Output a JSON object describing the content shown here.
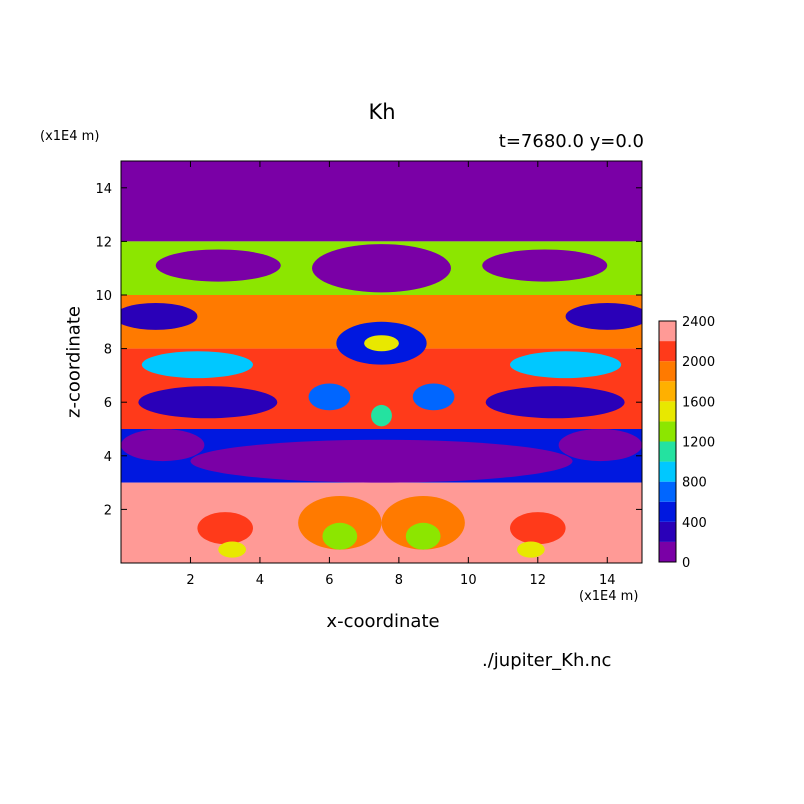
{
  "chart_data": {
    "type": "heatmap",
    "title": "Kh",
    "subtitle": "t=7680.0 y=0.0",
    "xlabel": "x-coordinate",
    "ylabel": "z-coordinate",
    "x_unit": "(x1E4 m)",
    "y_unit": "(x1E4 m)",
    "xlim": [
      0.0,
      15.0
    ],
    "ylim": [
      0.0,
      15.0
    ],
    "x_ticks": [
      "2",
      "4",
      "6",
      "8",
      "10",
      "12",
      "14"
    ],
    "y_ticks": [
      "2",
      "4",
      "6",
      "8",
      "10",
      "12",
      "14"
    ],
    "colorbar": {
      "levels": [
        0,
        200,
        400,
        600,
        800,
        1000,
        1200,
        1400,
        1600,
        1800,
        2000,
        2200,
        2400
      ],
      "labels": [
        "0",
        "400",
        "800",
        "1200",
        "1600",
        "2000",
        "2400"
      ],
      "colors": [
        "#7a00a6",
        "#2a00b8",
        "#0018e0",
        "#0066ff",
        "#00c8ff",
        "#24e2a0",
        "#8ce600",
        "#e8e800",
        "#ffb000",
        "#ff7a00",
        "#ff3a1a",
        "#ff9a96"
      ]
    },
    "bands": [
      {
        "z": [
          12.0,
          15.0
        ],
        "value": 0
      },
      {
        "z": [
          10.0,
          12.0
        ],
        "value": 1200
      },
      {
        "z": [
          8.0,
          10.0
        ],
        "value": 1800
      },
      {
        "z": [
          5.0,
          8.0
        ],
        "value": 2000
      },
      {
        "z": [
          3.0,
          5.0
        ],
        "value": 400
      },
      {
        "z": [
          0.0,
          3.0
        ],
        "value": 2400
      }
    ],
    "blobs": [
      {
        "x": 7.5,
        "z": 11.0,
        "rx": 2.0,
        "rz": 0.9,
        "value": 0
      },
      {
        "x": 2.8,
        "z": 11.1,
        "rx": 1.8,
        "rz": 0.6,
        "value": 0
      },
      {
        "x": 12.2,
        "z": 11.1,
        "rx": 1.8,
        "rz": 0.6,
        "value": 0
      },
      {
        "x": 1.0,
        "z": 9.2,
        "rx": 1.2,
        "rz": 0.5,
        "value": 200
      },
      {
        "x": 14.0,
        "z": 9.2,
        "rx": 1.2,
        "rz": 0.5,
        "value": 200
      },
      {
        "x": 7.5,
        "z": 8.2,
        "rx": 1.3,
        "rz": 0.8,
        "value": 400
      },
      {
        "x": 7.5,
        "z": 8.2,
        "rx": 0.5,
        "rz": 0.3,
        "value": 1400
      },
      {
        "x": 2.2,
        "z": 7.4,
        "rx": 1.6,
        "rz": 0.5,
        "value": 800
      },
      {
        "x": 12.8,
        "z": 7.4,
        "rx": 1.6,
        "rz": 0.5,
        "value": 800
      },
      {
        "x": 2.5,
        "z": 6.0,
        "rx": 2.0,
        "rz": 0.6,
        "value": 200
      },
      {
        "x": 12.5,
        "z": 6.0,
        "rx": 2.0,
        "rz": 0.6,
        "value": 200
      },
      {
        "x": 6.0,
        "z": 6.2,
        "rx": 0.6,
        "rz": 0.5,
        "value": 600
      },
      {
        "x": 9.0,
        "z": 6.2,
        "rx": 0.6,
        "rz": 0.5,
        "value": 600
      },
      {
        "x": 7.5,
        "z": 5.5,
        "rx": 0.3,
        "rz": 0.4,
        "value": 1000
      },
      {
        "x": 7.5,
        "z": 3.8,
        "rx": 5.5,
        "rz": 0.8,
        "value": 0
      },
      {
        "x": 1.2,
        "z": 4.4,
        "rx": 1.2,
        "rz": 0.6,
        "value": 0
      },
      {
        "x": 13.8,
        "z": 4.4,
        "rx": 1.2,
        "rz": 0.6,
        "value": 0
      },
      {
        "x": 6.3,
        "z": 1.5,
        "rx": 1.2,
        "rz": 1.0,
        "value": 1800
      },
      {
        "x": 8.7,
        "z": 1.5,
        "rx": 1.2,
        "rz": 1.0,
        "value": 1800
      },
      {
        "x": 6.3,
        "z": 1.0,
        "rx": 0.5,
        "rz": 0.5,
        "value": 1200
      },
      {
        "x": 8.7,
        "z": 1.0,
        "rx": 0.5,
        "rz": 0.5,
        "value": 1200
      },
      {
        "x": 3.0,
        "z": 1.3,
        "rx": 0.8,
        "rz": 0.6,
        "value": 2000
      },
      {
        "x": 12.0,
        "z": 1.3,
        "rx": 0.8,
        "rz": 0.6,
        "value": 2000
      },
      {
        "x": 3.2,
        "z": 0.5,
        "rx": 0.4,
        "rz": 0.3,
        "value": 1400
      },
      {
        "x": 11.8,
        "z": 0.5,
        "rx": 0.4,
        "rz": 0.3,
        "value": 1400
      }
    ],
    "grid": false,
    "legend": "right"
  },
  "footer": {
    "filename": "./jupiter_Kh.nc"
  }
}
